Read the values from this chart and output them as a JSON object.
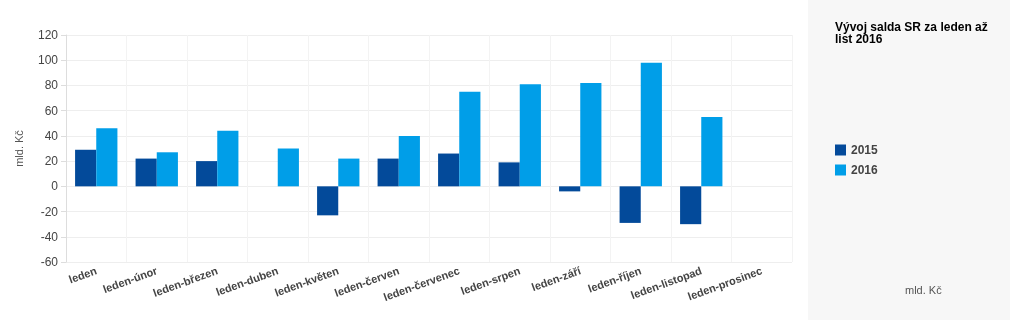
{
  "chart_data": {
    "type": "bar",
    "title": "Vývoj salda SR za leden až list 2016",
    "ylabel": "mld. Kč",
    "annotations": [
      "mld. Kč"
    ],
    "categories": [
      "leden",
      "leden-únor",
      "leden-březen",
      "leden-duben",
      "leden-květen",
      "leden-červen",
      "leden-červenec",
      "leden-srpen",
      "leden-září",
      "leden-říjen",
      "leden-listopad",
      "leden-prosinec"
    ],
    "series": [
      {
        "name": "2015",
        "color": "#034a9a",
        "values": [
          29,
          22,
          20,
          null,
          -23,
          22,
          26,
          19,
          -4,
          -29,
          -30,
          null
        ]
      },
      {
        "name": "2016",
        "color": "#009ee8",
        "values": [
          46,
          27,
          44,
          30,
          22,
          40,
          75,
          81,
          82,
          98,
          55,
          null
        ]
      }
    ],
    "ylim": [
      -60,
      120
    ],
    "yticks": [
      -60,
      -40,
      -20,
      0,
      20,
      40,
      60,
      80,
      100,
      120
    ],
    "grid": true,
    "legend": "right"
  }
}
